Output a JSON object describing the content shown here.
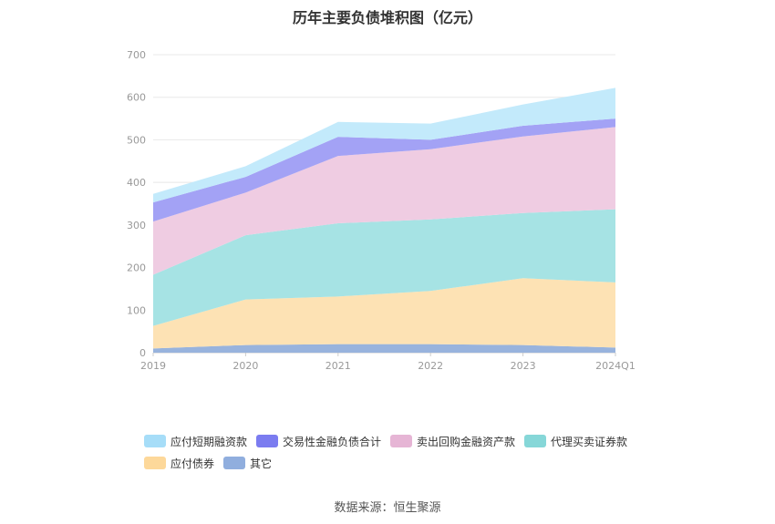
{
  "title": "历年主要负债堆积图（亿元）",
  "source": "数据来源：恒生聚源",
  "chart_data": {
    "type": "area",
    "stacked": true,
    "title": "历年主要负债堆积图（亿元）",
    "categories": [
      "2019",
      "2020",
      "2021",
      "2022",
      "2023",
      "2024Q1"
    ],
    "ylim": [
      0,
      700
    ],
    "yticks": [
      0,
      100,
      200,
      300,
      400,
      500,
      600,
      700
    ],
    "grid": true,
    "legend_position": "bottom",
    "series": [
      {
        "name": "其它",
        "color": "#98b3dd",
        "values": [
          10,
          18,
          20,
          20,
          18,
          12
        ]
      },
      {
        "name": "应付债券",
        "color": "#fde2b4",
        "values": [
          53,
          107,
          112,
          125,
          157,
          153
        ]
      },
      {
        "name": "代理买卖证券款",
        "color": "#a6e3e4",
        "values": [
          120,
          151,
          172,
          168,
          153,
          172
        ]
      },
      {
        "name": "卖出回购金融资产款",
        "color": "#efcce2",
        "values": [
          125,
          100,
          158,
          165,
          180,
          193
        ]
      },
      {
        "name": "交易性金融负债合计",
        "color": "#a3a2f5",
        "values": [
          45,
          37,
          45,
          22,
          25,
          20
        ]
      },
      {
        "name": "应付短期融资款",
        "color": "#c3eafb",
        "values": [
          20,
          25,
          35,
          38,
          50,
          72
        ]
      }
    ]
  },
  "legend": [
    {
      "name": "应付短期融资款",
      "color": "#a6ddf8"
    },
    {
      "name": "交易性金融负债合计",
      "color": "#7b7cf0"
    },
    {
      "name": "卖出回购金融资产款",
      "color": "#e6b5d5"
    },
    {
      "name": "代理买卖证券款",
      "color": "#86d7d8"
    },
    {
      "name": "应付债券",
      "color": "#fdd89a"
    },
    {
      "name": "其它",
      "color": "#90aede"
    }
  ]
}
